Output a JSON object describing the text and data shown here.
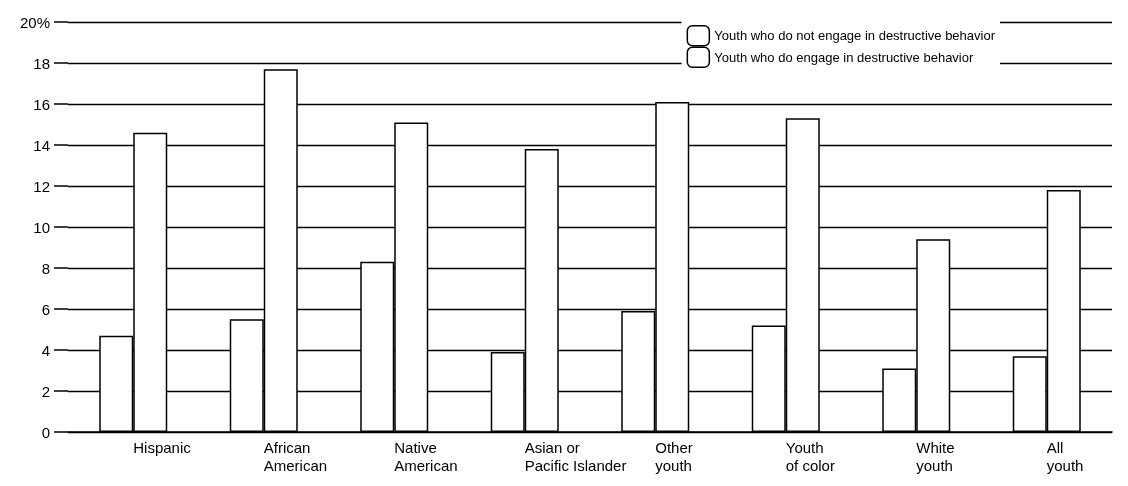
{
  "chart_data": {
    "type": "bar",
    "categories": [
      "Hispanic",
      "African\nAmerican",
      "Native\nAmerican",
      "Asian or\nPacific Islander",
      "Other\nyouth",
      "Youth\nof color",
      "White\nyouth",
      "All\nyouth"
    ],
    "series": [
      {
        "name": "Youth who do not engage in destructive behavior",
        "color": "#ffffff",
        "values": [
          4.7,
          5.5,
          8.3,
          3.9,
          5.9,
          5.2,
          3.1,
          3.7
        ]
      },
      {
        "name": "Youth who do engage in destructive behavior",
        "color": "#ffffff",
        "values": [
          14.6,
          17.7,
          15.1,
          13.8,
          16.1,
          15.3,
          9.4,
          11.8
        ]
      }
    ],
    "ylim": [
      0,
      20
    ],
    "yticks": [
      0,
      2,
      4,
      6,
      8,
      10,
      12,
      14,
      16,
      18,
      {
        "value": 20,
        "label": "20%"
      }
    ],
    "grid": "y",
    "legend": "top right"
  }
}
